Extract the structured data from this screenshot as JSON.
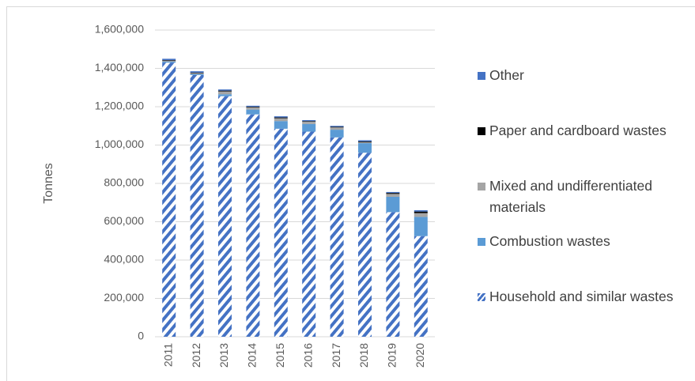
{
  "chart_data": {
    "type": "stacked_bar",
    "y_label": "Tonnes",
    "categories": [
      "2011",
      "2012",
      "2013",
      "2014",
      "2015",
      "2016",
      "2017",
      "2018",
      "2019",
      "2020"
    ],
    "series": [
      {
        "name": "Household and similar wastes",
        "color": "#4472c4",
        "hatch": true,
        "values": [
          1430000,
          1365000,
          1255000,
          1160000,
          1085000,
          1070000,
          1040000,
          960000,
          650000,
          525000
        ]
      },
      {
        "name": "Combustion wastes",
        "color": "#5b9bd5",
        "values": [
          5000,
          5000,
          10000,
          25000,
          40000,
          40000,
          40000,
          50000,
          80000,
          100000
        ]
      },
      {
        "name": "Mixed and undifferentiated materials",
        "color": "#a5a5a5",
        "values": [
          5000,
          5000,
          15000,
          12000,
          15000,
          12000,
          12000,
          5000,
          15000,
          20000
        ]
      },
      {
        "name": "Paper and cardboard wastes",
        "color": "#000000",
        "values": [
          3000,
          3000,
          4000,
          3000,
          4000,
          3000,
          3000,
          4000,
          5000,
          8000
        ]
      },
      {
        "name": "Other",
        "color": "#4472c4",
        "values": [
          7000,
          7000,
          6000,
          5000,
          6000,
          5000,
          5000,
          6000,
          5000,
          7000
        ]
      }
    ],
    "ylim": [
      0,
      1600000
    ],
    "yticks": [
      0,
      {
        "value": 200000,
        "label": "200,000"
      },
      {
        "value": 400000,
        "label": "400,000"
      },
      {
        "value": 600000,
        "label": "600,000"
      },
      {
        "value": 800000,
        "label": "800,000"
      },
      {
        "value": 1000000,
        "label": "1,000,000"
      },
      {
        "value": 1200000,
        "label": "1,200,000"
      },
      {
        "value": 1400000,
        "label": "1,400,000"
      },
      {
        "value": 1600000,
        "label": "1,600,000"
      }
    ],
    "grid": true
  }
}
